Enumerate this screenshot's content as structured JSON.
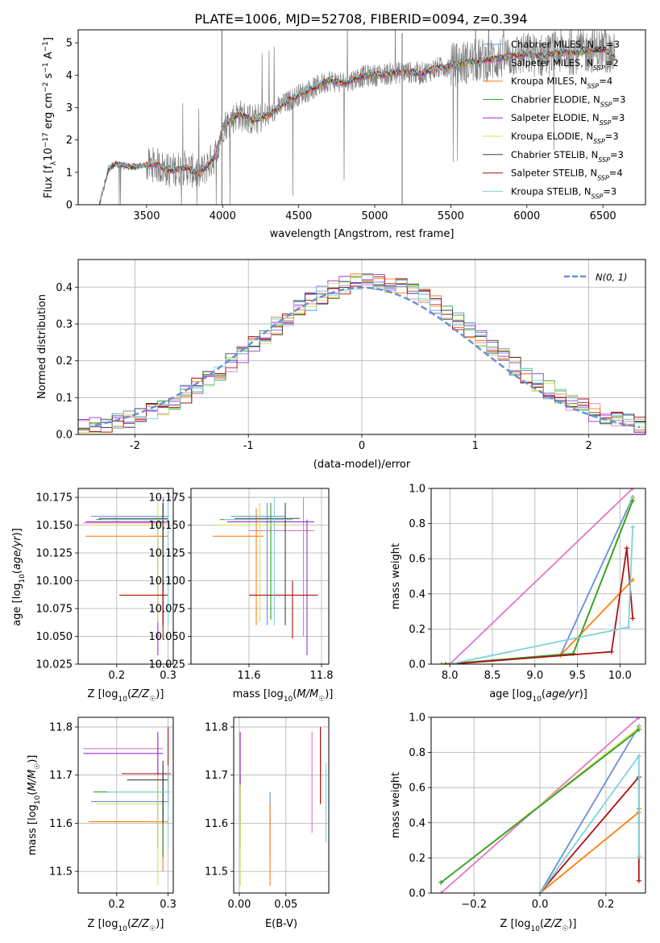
{
  "chart_data": [
    {
      "id": "spectrum",
      "type": "line",
      "title": "PLATE=1006, MJD=52708, FIBERID=0094, z=0.394",
      "xlabel": "wavelength [Angstrom, rest frame]",
      "ylabel": "Flux [f_λ 10^-17 erg cm^-2 s^-1 A^-1]",
      "xlim": [
        3050,
        6780
      ],
      "ylim": [
        0,
        5.4
      ],
      "xticks": [
        3500,
        4000,
        4500,
        5000,
        5500,
        6000,
        6500
      ],
      "yticks": [
        0,
        1,
        2,
        3,
        4,
        5
      ],
      "grid": false,
      "legend_position": "upper right",
      "observed_color": "#808080",
      "continuum": {
        "x": [
          3190,
          3250,
          3300,
          3400,
          3500,
          3550,
          3650,
          3750,
          3850,
          3950,
          4000,
          4100,
          4200,
          4300,
          4400,
          4500,
          4600,
          4700,
          4800,
          4900,
          5000,
          5100,
          5200,
          5300,
          5400,
          5500,
          5600,
          5700,
          5800,
          5900,
          6000,
          6100,
          6200,
          6300,
          6400,
          6500,
          6580
        ],
        "y": [
          0,
          1.1,
          1.25,
          1.15,
          1.2,
          1.25,
          1.05,
          1.15,
          0.95,
          1.5,
          2.4,
          2.8,
          2.6,
          2.75,
          3.1,
          3.4,
          3.6,
          3.85,
          3.75,
          3.95,
          4.0,
          4.05,
          4.1,
          4.05,
          4.2,
          4.3,
          4.4,
          4.45,
          4.5,
          4.6,
          4.65,
          4.6,
          4.7,
          4.7,
          4.75,
          4.8,
          4.6
        ]
      },
      "series": [
        {
          "name": "Chabrier MILES",
          "nssp": "3",
          "color": "#6a8fd8"
        },
        {
          "name": "Salpeter MILES",
          "nssp": "2",
          "color": "#e377c2"
        },
        {
          "name": "Kroupa MILES",
          "nssp": "4",
          "color": "#ff7f0e"
        },
        {
          "name": "Chabrier ELODIE",
          "nssp": "3",
          "color": "#2ca02c"
        },
        {
          "name": "Salpeter ELODIE",
          "nssp": "3",
          "color": "#9b30d0"
        },
        {
          "name": "Kroupa ELODIE",
          "nssp": "3",
          "color": "#d8e05a"
        },
        {
          "name": "Chabrier STELIB",
          "nssp": "3",
          "color": "#404040"
        },
        {
          "name": "Salpeter STELIB",
          "nssp": "4",
          "color": "#b01010"
        },
        {
          "name": "Kroupa STELIB",
          "nssp": "3",
          "color": "#80d0d8"
        }
      ]
    },
    {
      "id": "residuals",
      "type": "histogram",
      "xlabel": "(data-model)/error",
      "ylabel": "Normed distribution",
      "xlim": [
        -2.5,
        2.5
      ],
      "ylim": [
        0,
        0.475
      ],
      "xticks": [
        -2,
        -1,
        0,
        1,
        2
      ],
      "yticks": [
        0.0,
        0.1,
        0.2,
        0.3,
        0.4
      ],
      "grid": true,
      "legend_label": "N(0, 1)",
      "legend_position": "upper right",
      "gaussian_color": "#6a8fd8",
      "bins": [
        -2.5,
        -2.4,
        -2.3,
        -2.2,
        -2.1,
        -2.0,
        -1.9,
        -1.8,
        -1.7,
        -1.6,
        -1.5,
        -1.4,
        -1.3,
        -1.2,
        -1.1,
        -1.0,
        -0.9,
        -0.8,
        -0.7,
        -0.6,
        -0.5,
        -0.4,
        -0.3,
        -0.2,
        -0.1,
        0.0,
        0.1,
        0.2,
        0.3,
        0.4,
        0.5,
        0.6,
        0.7,
        0.8,
        0.9,
        1.0,
        1.1,
        1.2,
        1.3,
        1.4,
        1.5,
        1.6,
        1.7,
        1.8,
        1.9,
        2.0,
        2.1,
        2.2,
        2.3,
        2.4,
        2.5
      ]
    },
    {
      "id": "age-vs-Z",
      "type": "errorbar",
      "xlabel": "Z [log10(Z/Z☉)]",
      "ylabel": "age [log10(age/yr)]",
      "xlim": [
        0.125,
        0.31
      ],
      "ylim": [
        10.025,
        10.183
      ],
      "xticks": [
        0.2,
        0.3
      ],
      "yticks": [
        10.025,
        10.05,
        10.075,
        10.1,
        10.125,
        10.15,
        10.175
      ],
      "grid": true,
      "points": [
        {
          "x": 0.29,
          "y": 10.158,
          "xerr": [
            0.15,
            0.302
          ],
          "yerr": [
            10.06,
            10.17
          ],
          "color": "#6a8fd8"
        },
        {
          "x": 0.29,
          "y": 10.152,
          "xerr": [
            0.135,
            0.3
          ],
          "yerr": [
            10.06,
            10.175
          ],
          "color": "#e377c2"
        },
        {
          "x": 0.29,
          "y": 10.14,
          "xerr": [
            0.14,
            0.3
          ],
          "yerr": [
            10.06,
            10.165
          ],
          "color": "#ff7f0e"
        },
        {
          "x": 0.29,
          "y": 10.155,
          "xerr": [
            0.16,
            0.3
          ],
          "yerr": [
            10.07,
            10.17
          ],
          "color": "#2ca02c"
        },
        {
          "x": 0.28,
          "y": 10.153,
          "xerr": [
            0.14,
            0.295
          ],
          "yerr": [
            10.033,
            10.155
          ],
          "color": "#9b30d0"
        },
        {
          "x": 0.28,
          "y": 10.15,
          "xerr": [
            0.15,
            0.295
          ],
          "yerr": [
            10.063,
            10.17
          ],
          "color": "#d8e05a"
        },
        {
          "x": 0.29,
          "y": 10.156,
          "xerr": [
            0.165,
            0.3
          ],
          "yerr": [
            10.06,
            10.17
          ],
          "color": "#404040"
        },
        {
          "x": 0.29,
          "y": 10.087,
          "xerr": [
            0.205,
            0.3
          ],
          "yerr": [
            10.048,
            10.1
          ],
          "color": "#b01010"
        },
        {
          "x": 0.3,
          "y": 10.155,
          "xerr": [
            0.17,
            0.302
          ],
          "yerr": [
            10.06,
            10.175
          ],
          "color": "#80d0d8"
        }
      ]
    },
    {
      "id": "age-vs-mass",
      "type": "errorbar",
      "xlabel": "mass [log10(M/M☉)]",
      "ylabel": "",
      "xlim": [
        11.44,
        11.82
      ],
      "ylim": [
        10.025,
        10.183
      ],
      "xticks": [
        11.6,
        11.8
      ],
      "yticks": [
        10.025,
        10.05,
        10.075,
        10.1,
        10.125,
        10.15,
        10.175
      ],
      "grid": true,
      "points": [
        {
          "x": 11.65,
          "y": 10.158,
          "xerr": [
            11.55,
            11.7
          ],
          "yerr": [
            10.06,
            10.17
          ],
          "color": "#6a8fd8"
        },
        {
          "x": 11.75,
          "y": 10.145,
          "xerr": [
            11.6,
            11.78
          ],
          "yerr": [
            10.05,
            10.175
          ],
          "color": "#e377c2"
        },
        {
          "x": 11.62,
          "y": 10.14,
          "xerr": [
            11.5,
            11.64
          ],
          "yerr": [
            10.06,
            10.165
          ],
          "color": "#ff7f0e"
        },
        {
          "x": 11.66,
          "y": 10.155,
          "xerr": [
            11.52,
            11.72
          ],
          "yerr": [
            10.065,
            10.17
          ],
          "color": "#2ca02c"
        },
        {
          "x": 11.76,
          "y": 10.153,
          "xerr": [
            11.54,
            11.78
          ],
          "yerr": [
            10.033,
            10.155
          ],
          "color": "#9b30d0"
        },
        {
          "x": 11.63,
          "y": 10.15,
          "xerr": [
            11.5,
            11.72
          ],
          "yerr": [
            10.063,
            10.17
          ],
          "color": "#d8e05a"
        },
        {
          "x": 11.7,
          "y": 10.156,
          "xerr": [
            11.56,
            11.74
          ],
          "yerr": [
            10.06,
            10.17
          ],
          "color": "#404040"
        },
        {
          "x": 11.72,
          "y": 10.087,
          "xerr": [
            11.6,
            11.79
          ],
          "yerr": [
            10.048,
            10.1
          ],
          "color": "#b01010"
        },
        {
          "x": 11.67,
          "y": 10.155,
          "xerr": [
            11.53,
            11.72
          ],
          "yerr": [
            10.06,
            10.175
          ],
          "color": "#80d0d8"
        }
      ]
    },
    {
      "id": "weight-vs-age",
      "type": "line",
      "xlabel": "age [log10(age/yr)]",
      "ylabel": "mass weight",
      "xlim": [
        7.78,
        10.3
      ],
      "ylim": [
        0,
        1.0
      ],
      "xticks": [
        8.0,
        8.5,
        9.0,
        9.5,
        10.0
      ],
      "yticks": [
        0.0,
        0.2,
        0.4,
        0.6,
        0.8,
        1.0
      ],
      "grid": true,
      "series": [
        {
          "color": "#6a8fd8",
          "x": [
            7.95,
            9.3,
            10.15
          ],
          "y": [
            0.0,
            0.05,
            0.95
          ]
        },
        {
          "color": "#e377c2",
          "x": [
            8.0,
            10.15
          ],
          "y": [
            0.0,
            1.0
          ]
        },
        {
          "color": "#ff7f0e",
          "x": [
            7.9,
            9.3,
            10.15
          ],
          "y": [
            0.0,
            0.05,
            0.48
          ]
        },
        {
          "color": "#d8e05a",
          "x": [
            8.0,
            9.45,
            10.15
          ],
          "y": [
            0.0,
            0.06,
            0.94
          ]
        },
        {
          "color": "#2ca02c",
          "x": [
            7.95,
            9.45,
            10.15
          ],
          "y": [
            0.0,
            0.06,
            0.93
          ]
        },
        {
          "color": "#b01010",
          "x": [
            8.0,
            9.9,
            10.08,
            10.15
          ],
          "y": [
            0.0,
            0.07,
            0.66,
            0.26
          ]
        },
        {
          "color": "#80d0d8",
          "x": [
            8.0,
            10.1,
            10.15
          ],
          "y": [
            0.0,
            0.21,
            0.78
          ]
        }
      ]
    },
    {
      "id": "mass-vs-Z",
      "type": "errorbar",
      "xlabel": "Z [log10(Z/Z☉)]",
      "ylabel": "mass [log10(M/M☉)]",
      "xlim": [
        0.125,
        0.31
      ],
      "ylim": [
        11.455,
        11.82
      ],
      "xticks": [
        0.2,
        0.3
      ],
      "yticks": [
        11.5,
        11.6,
        11.7,
        11.8
      ],
      "grid": true,
      "points": [
        {
          "x": 0.29,
          "y": 11.645,
          "xerr": [
            0.15,
            0.3
          ],
          "yerr": [
            11.53,
            11.72
          ],
          "color": "#6a8fd8"
        },
        {
          "x": 0.28,
          "y": 11.755,
          "xerr": [
            0.135,
            0.29
          ],
          "yerr": [
            11.55,
            11.78
          ],
          "color": "#e377c2"
        },
        {
          "x": 0.29,
          "y": 11.603,
          "xerr": [
            0.145,
            0.3
          ],
          "yerr": [
            11.5,
            11.66
          ],
          "color": "#ff7f0e"
        },
        {
          "x": 0.29,
          "y": 11.665,
          "xerr": [
            0.155,
            0.3
          ],
          "yerr": [
            11.53,
            11.7
          ],
          "color": "#2ca02c"
        },
        {
          "x": 0.28,
          "y": 11.745,
          "xerr": [
            0.135,
            0.29
          ],
          "yerr": [
            11.55,
            11.79
          ],
          "color": "#9b30d0"
        },
        {
          "x": 0.28,
          "y": 11.64,
          "xerr": [
            0.16,
            0.295
          ],
          "yerr": [
            11.47,
            11.7
          ],
          "color": "#d8e05a"
        },
        {
          "x": 0.29,
          "y": 11.69,
          "xerr": [
            0.22,
            0.3
          ],
          "yerr": [
            11.6,
            11.73
          ],
          "color": "#404040"
        },
        {
          "x": 0.3,
          "y": 11.703,
          "xerr": [
            0.21,
            0.305
          ],
          "yerr": [
            11.64,
            11.8
          ],
          "color": "#b01010"
        },
        {
          "x": 0.3,
          "y": 11.665,
          "xerr": [
            0.18,
            0.305
          ],
          "yerr": [
            11.55,
            11.72
          ],
          "color": "#80d0d8"
        }
      ]
    },
    {
      "id": "mass-vs-ebv",
      "type": "errorbar",
      "xlabel": "E(B-V)",
      "ylabel": "",
      "xlim": [
        -0.006,
        0.096
      ],
      "ylim": [
        11.455,
        11.82
      ],
      "xticks": [
        0.0,
        0.05
      ],
      "xtick_labels": [
        "0.00",
        "0.05"
      ],
      "yticks": [
        11.5,
        11.6,
        11.7,
        11.8
      ],
      "grid": true,
      "points": [
        {
          "x": 0.033,
          "y": 11.645,
          "yerr": [
            11.53,
            11.665
          ],
          "color": "#6a8fd8"
        },
        {
          "x": 0.078,
          "y": 11.755,
          "yerr": [
            11.58,
            11.79
          ],
          "color": "#e377c2"
        },
        {
          "x": 0.033,
          "y": 11.603,
          "yerr": [
            11.47,
            11.64
          ],
          "color": "#ff7f0e"
        },
        {
          "x": 0.001,
          "y": 11.665,
          "yerr": [
            11.55,
            11.7
          ],
          "color": "#2ca02c"
        },
        {
          "x": 0.001,
          "y": 11.745,
          "yerr": [
            11.6,
            11.79
          ],
          "color": "#9b30d0"
        },
        {
          "x": 0.001,
          "y": 11.64,
          "yerr": [
            11.47,
            11.68
          ],
          "color": "#d8e05a"
        },
        {
          "x": 0.087,
          "y": 11.69,
          "yerr": [
            11.64,
            11.8
          ],
          "color": "#404040"
        },
        {
          "x": 0.087,
          "y": 11.703,
          "yerr": [
            11.64,
            11.8
          ],
          "color": "#b01010"
        },
        {
          "x": 0.093,
          "y": 11.665,
          "yerr": [
            11.56,
            11.725
          ],
          "color": "#80d0d8"
        }
      ]
    },
    {
      "id": "weight-vs-Z",
      "type": "line",
      "xlabel": "Z [log10(Z/Z☉)]",
      "ylabel": "mass weight",
      "xlim": [
        -0.33,
        0.32
      ],
      "ylim": [
        0,
        1.0
      ],
      "xticks": [
        -0.2,
        0.0,
        0.2
      ],
      "xtick_labels": [
        "−0.2",
        "0.0",
        "0.2"
      ],
      "yticks": [
        0.0,
        0.2,
        0.4,
        0.6,
        0.8,
        1.0
      ],
      "grid": true,
      "series": [
        {
          "color": "#6a8fd8",
          "x": [
            0.0,
            0.3
          ],
          "y": [
            0.0,
            0.95
          ]
        },
        {
          "color": "#e377c2",
          "x": [
            -0.3,
            0.3
          ],
          "y": [
            0.0,
            1.0
          ]
        },
        {
          "color": "#ff7f0e",
          "x": [
            0.0,
            0.3,
            0.3
          ],
          "y": [
            0.0,
            0.46,
            0.48
          ]
        },
        {
          "color": "#d8e05a",
          "x": [
            -0.3,
            0.3
          ],
          "y": [
            0.06,
            0.94
          ]
        },
        {
          "color": "#2ca02c",
          "x": [
            -0.3,
            0.3
          ],
          "y": [
            0.06,
            0.93
          ]
        },
        {
          "color": "#b01010",
          "x": [
            0.0,
            0.3,
            0.3
          ],
          "y": [
            0.0,
            0.66,
            0.07
          ]
        },
        {
          "color": "#80d0d8",
          "x": [
            0.0,
            0.3,
            0.3
          ],
          "y": [
            0.0,
            0.78,
            0.21
          ]
        }
      ]
    }
  ]
}
